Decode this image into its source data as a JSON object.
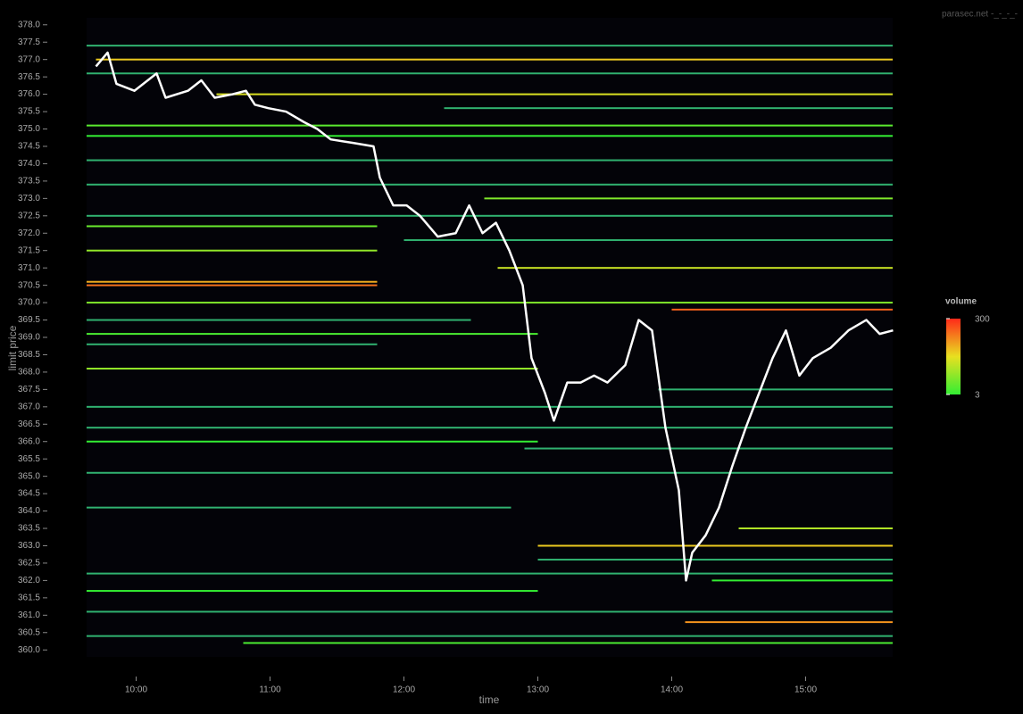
{
  "chart_data": {
    "type": "orderbook",
    "watermark": "parasec.net -_-_-_-",
    "x_label": "time",
    "y_label": "limit price",
    "xlim": [
      9.63,
      15.65
    ],
    "ylim": [
      359.8,
      378.2
    ],
    "xticks": [
      {
        "value": 10,
        "label": "10:00"
      },
      {
        "value": 11,
        "label": "11:00"
      },
      {
        "value": 12,
        "label": "12:00"
      },
      {
        "value": 13,
        "label": "13:00"
      },
      {
        "value": 14,
        "label": "14:00"
      },
      {
        "value": 15,
        "label": "15:00"
      }
    ],
    "yticks": [
      {
        "value": 360,
        "label": "360.0"
      },
      360.5,
      {
        "value": 361,
        "label": "361.0"
      },
      361.5,
      {
        "value": 362,
        "label": "362.0"
      },
      362.5,
      {
        "value": 363,
        "label": "363.0"
      },
      363.5,
      {
        "value": 364,
        "label": "364.0"
      },
      364.5,
      {
        "value": 365,
        "label": "365.0"
      },
      365.5,
      {
        "value": 366,
        "label": "366.0"
      },
      366.5,
      {
        "value": 367,
        "label": "367.0"
      },
      367.5,
      {
        "value": 368,
        "label": "368.0"
      },
      368.5,
      {
        "value": 369,
        "label": "369.0"
      },
      369.5,
      {
        "value": 370,
        "label": "370.0"
      },
      370.5,
      {
        "value": 371,
        "label": "371.0"
      },
      371.5,
      {
        "value": 372,
        "label": "372.0"
      },
      372.5,
      {
        "value": 373,
        "label": "373.0"
      },
      373.5,
      {
        "value": 374,
        "label": "374.0"
      },
      374.5,
      {
        "value": 375,
        "label": "375.0"
      },
      375.5,
      {
        "value": 376,
        "label": "376.0"
      },
      376.5,
      {
        "value": 377,
        "label": "377.0"
      },
      377.5,
      {
        "value": 378,
        "label": "378.0"
      }
    ],
    "colorscale": [
      [
        1,
        "#2a4bd8"
      ],
      [
        3,
        "#33ee33"
      ],
      [
        30,
        "#e8e020"
      ],
      [
        300,
        "#ff2a1a"
      ]
    ],
    "legend": {
      "title": "volume",
      "ticks": [
        300,
        3
      ]
    },
    "price": {
      "color": "#ffffff",
      "x": [
        9.7,
        9.787,
        9.853,
        9.987,
        10.153,
        10.22,
        10.387,
        10.487,
        10.587,
        10.72,
        10.82,
        10.887,
        10.987,
        11.12,
        11.253,
        11.353,
        11.453,
        11.62,
        11.773,
        11.82,
        11.92,
        12.02,
        12.12,
        12.253,
        12.387,
        12.487,
        12.587,
        12.687,
        12.787,
        12.887,
        12.953,
        13.053,
        13.12,
        13.22,
        13.32,
        13.42,
        13.52,
        13.653,
        13.753,
        13.853,
        13.953,
        14.053,
        14.107,
        14.153,
        14.253,
        14.353,
        14.453,
        14.553,
        14.653,
        14.753,
        14.853,
        14.953,
        15.053,
        15.187,
        15.32,
        15.453,
        15.553,
        15.653
      ],
      "values": [
        376.8,
        377.2,
        376.3,
        376.1,
        376.6,
        375.9,
        376.1,
        376.4,
        375.9,
        376.0,
        376.1,
        375.7,
        375.6,
        375.5,
        375.2,
        375.0,
        374.7,
        374.6,
        374.5,
        373.6,
        372.8,
        372.8,
        372.5,
        371.9,
        372.0,
        372.8,
        372.0,
        372.3,
        371.5,
        370.5,
        368.4,
        367.4,
        366.6,
        367.7,
        367.7,
        367.9,
        367.7,
        368.2,
        369.5,
        369.2,
        366.4,
        364.6,
        362.0,
        362.8,
        363.3,
        364.1,
        365.3,
        366.4,
        367.4,
        368.4,
        369.2,
        367.9,
        368.4,
        368.7,
        369.2,
        369.5,
        369.1,
        369.2
      ]
    },
    "levels": [
      {
        "price": 377.4,
        "start": 9.63,
        "end": 15.65,
        "volume": 2
      },
      {
        "price": 377.0,
        "start": 9.7,
        "end": 15.65,
        "volume": 40
      },
      {
        "price": 376.6,
        "start": 9.63,
        "end": 15.65,
        "volume": 2
      },
      {
        "price": 376.0,
        "start": 10.6,
        "end": 15.65,
        "volume": 25
      },
      {
        "price": 375.6,
        "start": 12.3,
        "end": 15.65,
        "volume": 2
      },
      {
        "price": 375.1,
        "start": 9.63,
        "end": 15.65,
        "volume": 5
      },
      {
        "price": 374.8,
        "start": 9.63,
        "end": 15.65,
        "volume": 3
      },
      {
        "price": 374.1,
        "start": 9.63,
        "end": 15.65,
        "volume": 2
      },
      {
        "price": 373.4,
        "start": 9.63,
        "end": 15.65,
        "volume": 2
      },
      {
        "price": 373.0,
        "start": 12.6,
        "end": 15.65,
        "volume": 8
      },
      {
        "price": 372.5,
        "start": 9.63,
        "end": 15.65,
        "volume": 2
      },
      {
        "price": 372.2,
        "start": 9.63,
        "end": 11.8,
        "volume": 6
      },
      {
        "price": 371.8,
        "start": 12.0,
        "end": 15.65,
        "volume": 2
      },
      {
        "price": 371.5,
        "start": 9.63,
        "end": 11.8,
        "volume": 10
      },
      {
        "price": 371.0,
        "start": 12.7,
        "end": 15.65,
        "volume": 20
      },
      {
        "price": 370.6,
        "start": 9.63,
        "end": 11.8,
        "volume": 60
      },
      {
        "price": 370.5,
        "start": 9.63,
        "end": 11.8,
        "volume": 120
      },
      {
        "price": 370.0,
        "start": 9.63,
        "end": 15.65,
        "volume": 8
      },
      {
        "price": 369.8,
        "start": 14.0,
        "end": 15.65,
        "volume": 150
      },
      {
        "price": 369.5,
        "start": 9.63,
        "end": 12.5,
        "volume": 2
      },
      {
        "price": 369.1,
        "start": 9.63,
        "end": 13.0,
        "volume": 4
      },
      {
        "price": 368.8,
        "start": 9.63,
        "end": 11.8,
        "volume": 2
      },
      {
        "price": 368.1,
        "start": 9.63,
        "end": 13.0,
        "volume": 10
      },
      {
        "price": 367.5,
        "start": 13.9,
        "end": 15.65,
        "volume": 2
      },
      {
        "price": 367.0,
        "start": 9.63,
        "end": 15.65,
        "volume": 2
      },
      {
        "price": 366.4,
        "start": 9.63,
        "end": 15.65,
        "volume": 2
      },
      {
        "price": 366.0,
        "start": 9.63,
        "end": 13.0,
        "volume": 3
      },
      {
        "price": 365.8,
        "start": 12.9,
        "end": 15.65,
        "volume": 2
      },
      {
        "price": 365.1,
        "start": 9.63,
        "end": 15.65,
        "volume": 2
      },
      {
        "price": 364.1,
        "start": 9.63,
        "end": 12.8,
        "volume": 2
      },
      {
        "price": 363.5,
        "start": 14.5,
        "end": 15.65,
        "volume": 15
      },
      {
        "price": 363.0,
        "start": 13.0,
        "end": 15.65,
        "volume": 40
      },
      {
        "price": 362.6,
        "start": 13.0,
        "end": 15.65,
        "volume": 2
      },
      {
        "price": 362.2,
        "start": 9.63,
        "end": 15.65,
        "volume": 2
      },
      {
        "price": 362.0,
        "start": 14.3,
        "end": 15.65,
        "volume": 3
      },
      {
        "price": 361.7,
        "start": 9.63,
        "end": 13.0,
        "volume": 3
      },
      {
        "price": 361.1,
        "start": 9.63,
        "end": 15.65,
        "volume": 2
      },
      {
        "price": 360.8,
        "start": 14.1,
        "end": 15.65,
        "volume": 80
      },
      {
        "price": 360.4,
        "start": 9.63,
        "end": 15.65,
        "volume": 2
      },
      {
        "price": 360.2,
        "start": 10.8,
        "end": 15.65,
        "volume": 4
      }
    ]
  }
}
